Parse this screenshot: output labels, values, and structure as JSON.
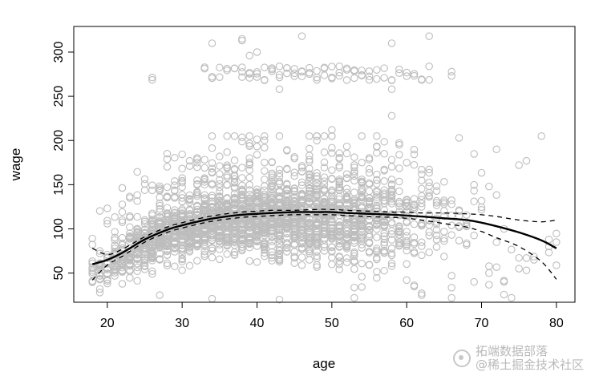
{
  "chart_data": {
    "type": "scatter",
    "title": "",
    "xlabel": "age",
    "ylabel": "wage",
    "xlim": [
      18,
      80
    ],
    "ylim": [
      20,
      320
    ],
    "x_ticks": [
      20,
      30,
      40,
      50,
      60,
      70,
      80
    ],
    "y_ticks": [
      50,
      100,
      150,
      200,
      250,
      300
    ],
    "x_tick_labels": [
      "20",
      "30",
      "40",
      "50",
      "60",
      "70",
      "80"
    ],
    "y_tick_labels": [
      "50",
      "100",
      "150",
      "200",
      "250",
      "300"
    ],
    "grid": false,
    "legend": "none",
    "point_color": "#bdbdbd",
    "series": [
      {
        "kind": "fit",
        "style": "solid",
        "x": [
          18,
          20,
          22,
          25,
          28,
          30,
          33,
          35,
          38,
          40,
          42,
          45,
          48,
          50,
          52,
          55,
          58,
          60,
          62,
          65,
          68,
          70,
          72,
          75,
          78,
          80
        ],
        "y": [
          60,
          65,
          73,
          88,
          99,
          104,
          110,
          113,
          116,
          117,
          118,
          119,
          119,
          119,
          118,
          117,
          116,
          115,
          114,
          112,
          110,
          107,
          103,
          96,
          87,
          78
        ]
      },
      {
        "kind": "confidence-upper",
        "style": "dashed",
        "x": [
          18,
          20,
          22,
          25,
          28,
          30,
          33,
          35,
          38,
          40,
          42,
          45,
          48,
          50,
          52,
          55,
          58,
          60,
          62,
          65,
          68,
          70,
          72,
          75,
          78,
          80
        ],
        "y": [
          78,
          71,
          77,
          91,
          102,
          107,
          113,
          116,
          119,
          120,
          121,
          121,
          122,
          122,
          121,
          120,
          119,
          119,
          118,
          118,
          117,
          116,
          114,
          110,
          108,
          110
        ]
      },
      {
        "kind": "confidence-lower",
        "style": "dashed",
        "x": [
          18,
          20,
          22,
          25,
          28,
          30,
          33,
          35,
          38,
          40,
          42,
          45,
          48,
          50,
          52,
          55,
          58,
          60,
          62,
          65,
          68,
          70,
          72,
          75,
          78,
          80
        ],
        "y": [
          42,
          59,
          69,
          85,
          96,
          101,
          107,
          110,
          113,
          114,
          115,
          116,
          116,
          116,
          115,
          114,
          113,
          112,
          110,
          106,
          102,
          97,
          90,
          80,
          63,
          43
        ]
      }
    ],
    "points_generator": {
      "seed": 11,
      "main": [
        {
          "age": 18,
          "n": 12
        },
        {
          "age": 19,
          "n": 16
        },
        {
          "age": 20,
          "n": 20
        },
        {
          "age": 21,
          "n": 24
        },
        {
          "age": 22,
          "n": 30
        },
        {
          "age": 23,
          "n": 36
        },
        {
          "age": 24,
          "n": 42
        },
        {
          "age": 25,
          "n": 48
        },
        {
          "age": 26,
          "n": 52
        },
        {
          "age": 27,
          "n": 56
        },
        {
          "age": 28,
          "n": 60
        },
        {
          "age": 29,
          "n": 62
        },
        {
          "age": 30,
          "n": 64
        },
        {
          "age": 31,
          "n": 64
        },
        {
          "age": 32,
          "n": 66
        },
        {
          "age": 33,
          "n": 66
        },
        {
          "age": 34,
          "n": 66
        },
        {
          "age": 35,
          "n": 66
        },
        {
          "age": 36,
          "n": 64
        },
        {
          "age": 37,
          "n": 64
        },
        {
          "age": 38,
          "n": 64
        },
        {
          "age": 39,
          "n": 64
        },
        {
          "age": 40,
          "n": 64
        },
        {
          "age": 41,
          "n": 64
        },
        {
          "age": 42,
          "n": 64
        },
        {
          "age": 43,
          "n": 64
        },
        {
          "age": 44,
          "n": 62
        },
        {
          "age": 45,
          "n": 62
        },
        {
          "age": 46,
          "n": 60
        },
        {
          "age": 47,
          "n": 60
        },
        {
          "age": 48,
          "n": 58
        },
        {
          "age": 49,
          "n": 58
        },
        {
          "age": 50,
          "n": 56
        },
        {
          "age": 51,
          "n": 54
        },
        {
          "age": 52,
          "n": 52
        },
        {
          "age": 53,
          "n": 50
        },
        {
          "age": 54,
          "n": 46
        },
        {
          "age": 55,
          "n": 42
        },
        {
          "age": 56,
          "n": 38
        },
        {
          "age": 57,
          "n": 34
        },
        {
          "age": 58,
          "n": 30
        },
        {
          "age": 59,
          "n": 26
        },
        {
          "age": 60,
          "n": 22
        },
        {
          "age": 61,
          "n": 18
        },
        {
          "age": 62,
          "n": 16
        },
        {
          "age": 63,
          "n": 14
        },
        {
          "age": 64,
          "n": 12
        },
        {
          "age": 65,
          "n": 10
        },
        {
          "age": 66,
          "n": 8
        },
        {
          "age": 67,
          "n": 7
        },
        {
          "age": 68,
          "n": 6
        },
        {
          "age": 69,
          "n": 5
        },
        {
          "age": 70,
          "n": 4
        },
        {
          "age": 71,
          "n": 3
        },
        {
          "age": 72,
          "n": 3
        },
        {
          "age": 73,
          "n": 2
        },
        {
          "age": 74,
          "n": 2
        },
        {
          "age": 75,
          "n": 2
        },
        {
          "age": 76,
          "n": 2
        },
        {
          "age": 77,
          "n": 1
        },
        {
          "age": 78,
          "n": 1
        },
        {
          "age": 79,
          "n": 1
        },
        {
          "age": 80,
          "n": 2
        }
      ],
      "high_band_ages": [
        26,
        33,
        34,
        35,
        36,
        37,
        38,
        39,
        40,
        41,
        42,
        43,
        44,
        45,
        46,
        47,
        48,
        49,
        50,
        51,
        52,
        53,
        54,
        55,
        56,
        57,
        58,
        59,
        60,
        61,
        62,
        63,
        66
      ],
      "extra_points": [
        {
          "x": 34,
          "y": 310
        },
        {
          "x": 38,
          "y": 313
        },
        {
          "x": 38,
          "y": 315
        },
        {
          "x": 39,
          "y": 296
        },
        {
          "x": 40,
          "y": 300
        },
        {
          "x": 46,
          "y": 318
        },
        {
          "x": 58,
          "y": 310
        },
        {
          "x": 63,
          "y": 318
        },
        {
          "x": 58,
          "y": 228
        },
        {
          "x": 50,
          "y": 212
        },
        {
          "x": 43,
          "y": 258
        },
        {
          "x": 58,
          "y": 258
        },
        {
          "x": 72,
          "y": 190
        },
        {
          "x": 76,
          "y": 177
        },
        {
          "x": 18,
          "y": 41
        },
        {
          "x": 19,
          "y": 28
        },
        {
          "x": 19,
          "y": 32
        },
        {
          "x": 34,
          "y": 21
        },
        {
          "x": 43,
          "y": 20
        },
        {
          "x": 53,
          "y": 22
        },
        {
          "x": 62,
          "y": 25
        },
        {
          "x": 27,
          "y": 25
        },
        {
          "x": 73,
          "y": 40
        },
        {
          "x": 69,
          "y": 40
        },
        {
          "x": 79,
          "y": 80
        },
        {
          "x": 79,
          "y": 88
        },
        {
          "x": 80,
          "y": 85
        },
        {
          "x": 77,
          "y": 65
        },
        {
          "x": 75,
          "y": 55
        },
        {
          "x": 73,
          "y": 100
        },
        {
          "x": 71,
          "y": 50
        }
      ]
    }
  },
  "watermark": {
    "line1": "拓端数据部落",
    "line2": "@稀土掘金技术社区"
  }
}
